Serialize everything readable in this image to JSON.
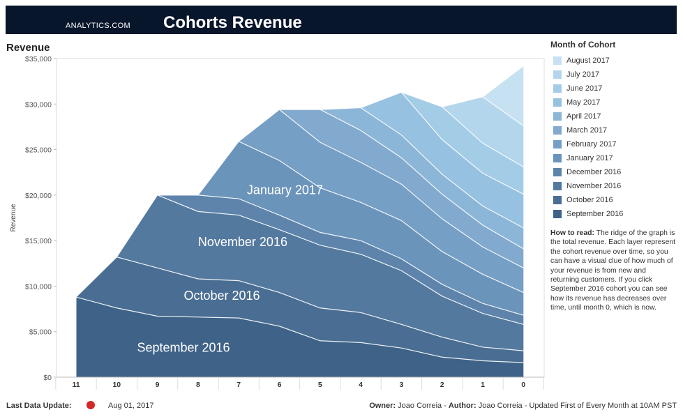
{
  "header": {
    "brand": "ANALYTICS.COM",
    "title": "Cohorts Revenue"
  },
  "section_title": "Revenue",
  "legend": {
    "title": "Month of Cohort",
    "items": [
      {
        "label": "August 2017",
        "color": "#c6e1f1"
      },
      {
        "label": "July 2017",
        "color": "#b3d6ec"
      },
      {
        "label": "June 2017",
        "color": "#a3cce7"
      },
      {
        "label": "May 2017",
        "color": "#96c1e0"
      },
      {
        "label": "April 2017",
        "color": "#8cb6d8"
      },
      {
        "label": "March 2017",
        "color": "#81aace"
      },
      {
        "label": "February 2017",
        "color": "#769fc5"
      },
      {
        "label": "January 2017",
        "color": "#6b94bb"
      },
      {
        "label": "December 2016",
        "color": "#5e84ab"
      },
      {
        "label": "November 2016",
        "color": "#54799f"
      },
      {
        "label": "October 2016",
        "color": "#4a6e93"
      },
      {
        "label": "September 2016",
        "color": "#3e6288"
      }
    ]
  },
  "how_to_read": {
    "label": "How to read:",
    "text": " The ridge of the graph is the total revenue. Each layer represent the cohort revenue over time, so you can have a visual clue of how much of your revenue is from new and returning customers. If you click September 2016 cohort you can see how its revenue has decreases over time, until month 0, which is now."
  },
  "footer": {
    "last_update_label": "Last Data Update:",
    "last_update_value": "Aug 01, 2017",
    "owner_label": "Owner:",
    "owner": "Joao Correia",
    "author_label": "Author:",
    "author": "Joao Correia",
    "note": "Updated First of Every Month at 10AM PST",
    "status_color": "#d62728"
  },
  "chart_data": {
    "type": "area",
    "stacked": true,
    "title": "Revenue",
    "ylabel": "Revenue",
    "xlabel": "",
    "x": [
      11,
      10,
      9,
      8,
      7,
      6,
      5,
      4,
      3,
      2,
      1,
      0
    ],
    "x_tick_labels": [
      "11",
      "10",
      "9",
      "8",
      "7",
      "6",
      "5",
      "4",
      "3",
      "2",
      "1",
      "0"
    ],
    "ylim": [
      0,
      35000
    ],
    "y_tick_labels": [
      "$0",
      "$5,000",
      "$10,000",
      "$15,000",
      "$20,000",
      "$25,000",
      "$30,000",
      "$35,000"
    ],
    "series": [
      {
        "name": "September 2016",
        "color": "#3e6288",
        "values": [
          8800,
          7600,
          6700,
          6600,
          6500,
          5600,
          4000,
          3800,
          3200,
          2200,
          1800,
          1600
        ]
      },
      {
        "name": "October 2016",
        "color": "#4a6e93",
        "values": [
          null,
          5600,
          5300,
          4200,
          4100,
          3700,
          3600,
          3300,
          2600,
          2200,
          1500,
          1300
        ]
      },
      {
        "name": "November 2016",
        "color": "#54799f",
        "values": [
          null,
          null,
          8000,
          7400,
          7200,
          6900,
          6900,
          6400,
          5900,
          4500,
          3700,
          2900
        ]
      },
      {
        "name": "December 2016",
        "color": "#5e84ab",
        "values": [
          null,
          null,
          null,
          1800,
          1800,
          1600,
          1400,
          1500,
          1300,
          1300,
          1100,
          1000
        ]
      },
      {
        "name": "January 2017",
        "color": "#6b94bb",
        "values": [
          null,
          null,
          null,
          null,
          6300,
          6000,
          4900,
          4200,
          4200,
          3600,
          3200,
          2500
        ]
      },
      {
        "name": "February 2017",
        "color": "#769fc5",
        "values": [
          null,
          null,
          null,
          null,
          null,
          5600,
          5000,
          4400,
          4000,
          3600,
          3000,
          2700
        ]
      },
      {
        "name": "March 2017",
        "color": "#81aace",
        "values": [
          null,
          null,
          null,
          null,
          null,
          null,
          3600,
          3500,
          2900,
          2700,
          2400,
          2100
        ]
      },
      {
        "name": "April 2017",
        "color": "#8cb6d8",
        "values": [
          null,
          null,
          null,
          null,
          null,
          null,
          null,
          2500,
          2500,
          2200,
          2100,
          2300
        ]
      },
      {
        "name": "May 2017",
        "color": "#96c1e0",
        "values": [
          null,
          null,
          null,
          null,
          null,
          null,
          null,
          null,
          4700,
          3800,
          3600,
          3700
        ]
      },
      {
        "name": "June 2017",
        "color": "#a3cce7",
        "values": [
          null,
          null,
          null,
          null,
          null,
          null,
          null,
          null,
          null,
          3600,
          3300,
          3000
        ]
      },
      {
        "name": "July 2017",
        "color": "#b3d6ec",
        "values": [
          null,
          null,
          null,
          null,
          null,
          null,
          null,
          null,
          null,
          null,
          5100,
          4500
        ]
      },
      {
        "name": "August 2017",
        "color": "#c6e1f1",
        "values": [
          null,
          null,
          null,
          null,
          null,
          null,
          null,
          null,
          null,
          null,
          null,
          6600
        ]
      }
    ],
    "annotations": [
      {
        "text": "September 2016",
        "x": 9.5,
        "y": 2800
      },
      {
        "text": "October 2016",
        "x": 8.35,
        "y": 8500
      },
      {
        "text": "November 2016",
        "x": 8.0,
        "y": 14400
      },
      {
        "text": "January 2017",
        "x": 6.8,
        "y": 20100
      }
    ],
    "grid": false,
    "legend_position": "right"
  }
}
